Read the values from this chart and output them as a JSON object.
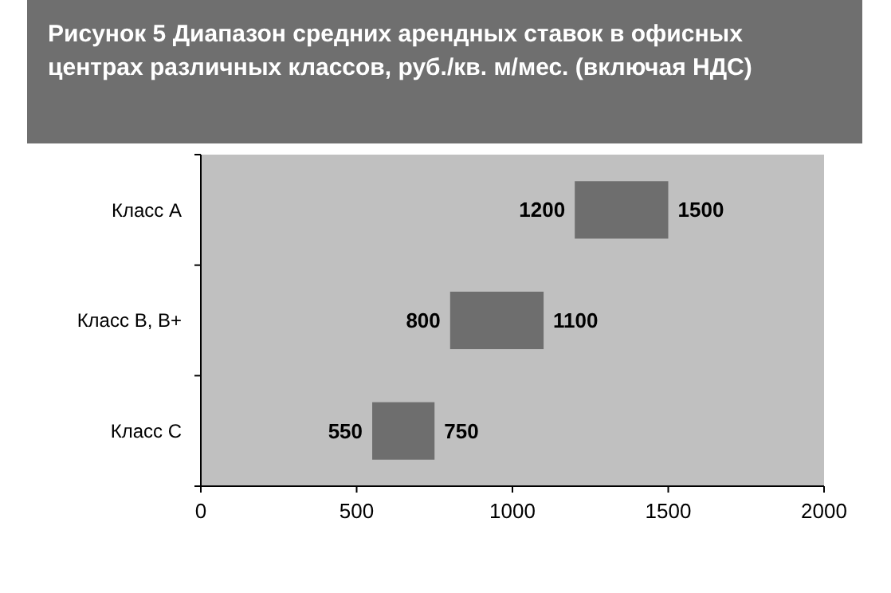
{
  "chart_data": {
    "type": "bar",
    "orientation": "horizontal",
    "title": "Рисунок 5 Диапазон средних арендных ставок в офисных центрах различных классов, руб./кв. м/мес. (включая НДС)",
    "categories": [
      "Класс А",
      "Класс В, В+",
      "Класс С"
    ],
    "base": [
      1200,
      800,
      550
    ],
    "values": [
      300,
      300,
      200
    ],
    "color": "#6e6e6e",
    "xlim": [
      0,
      2000
    ],
    "xticks": [
      0,
      500,
      1000,
      1500,
      2000
    ],
    "grid": false,
    "annotations": [
      {
        "text": "1200",
        "x": 1200,
        "y": "Класс А"
      },
      {
        "text": "1500",
        "x": 1500,
        "y": "Класс А"
      },
      {
        "text": "800",
        "x": 800,
        "y": "Класс В, В+"
      },
      {
        "text": "1100",
        "x": 1100,
        "y": "Класс В, В+"
      },
      {
        "text": "550",
        "x": 550,
        "y": "Класс С"
      },
      {
        "text": "750",
        "x": 750,
        "y": "Класс С"
      }
    ]
  }
}
